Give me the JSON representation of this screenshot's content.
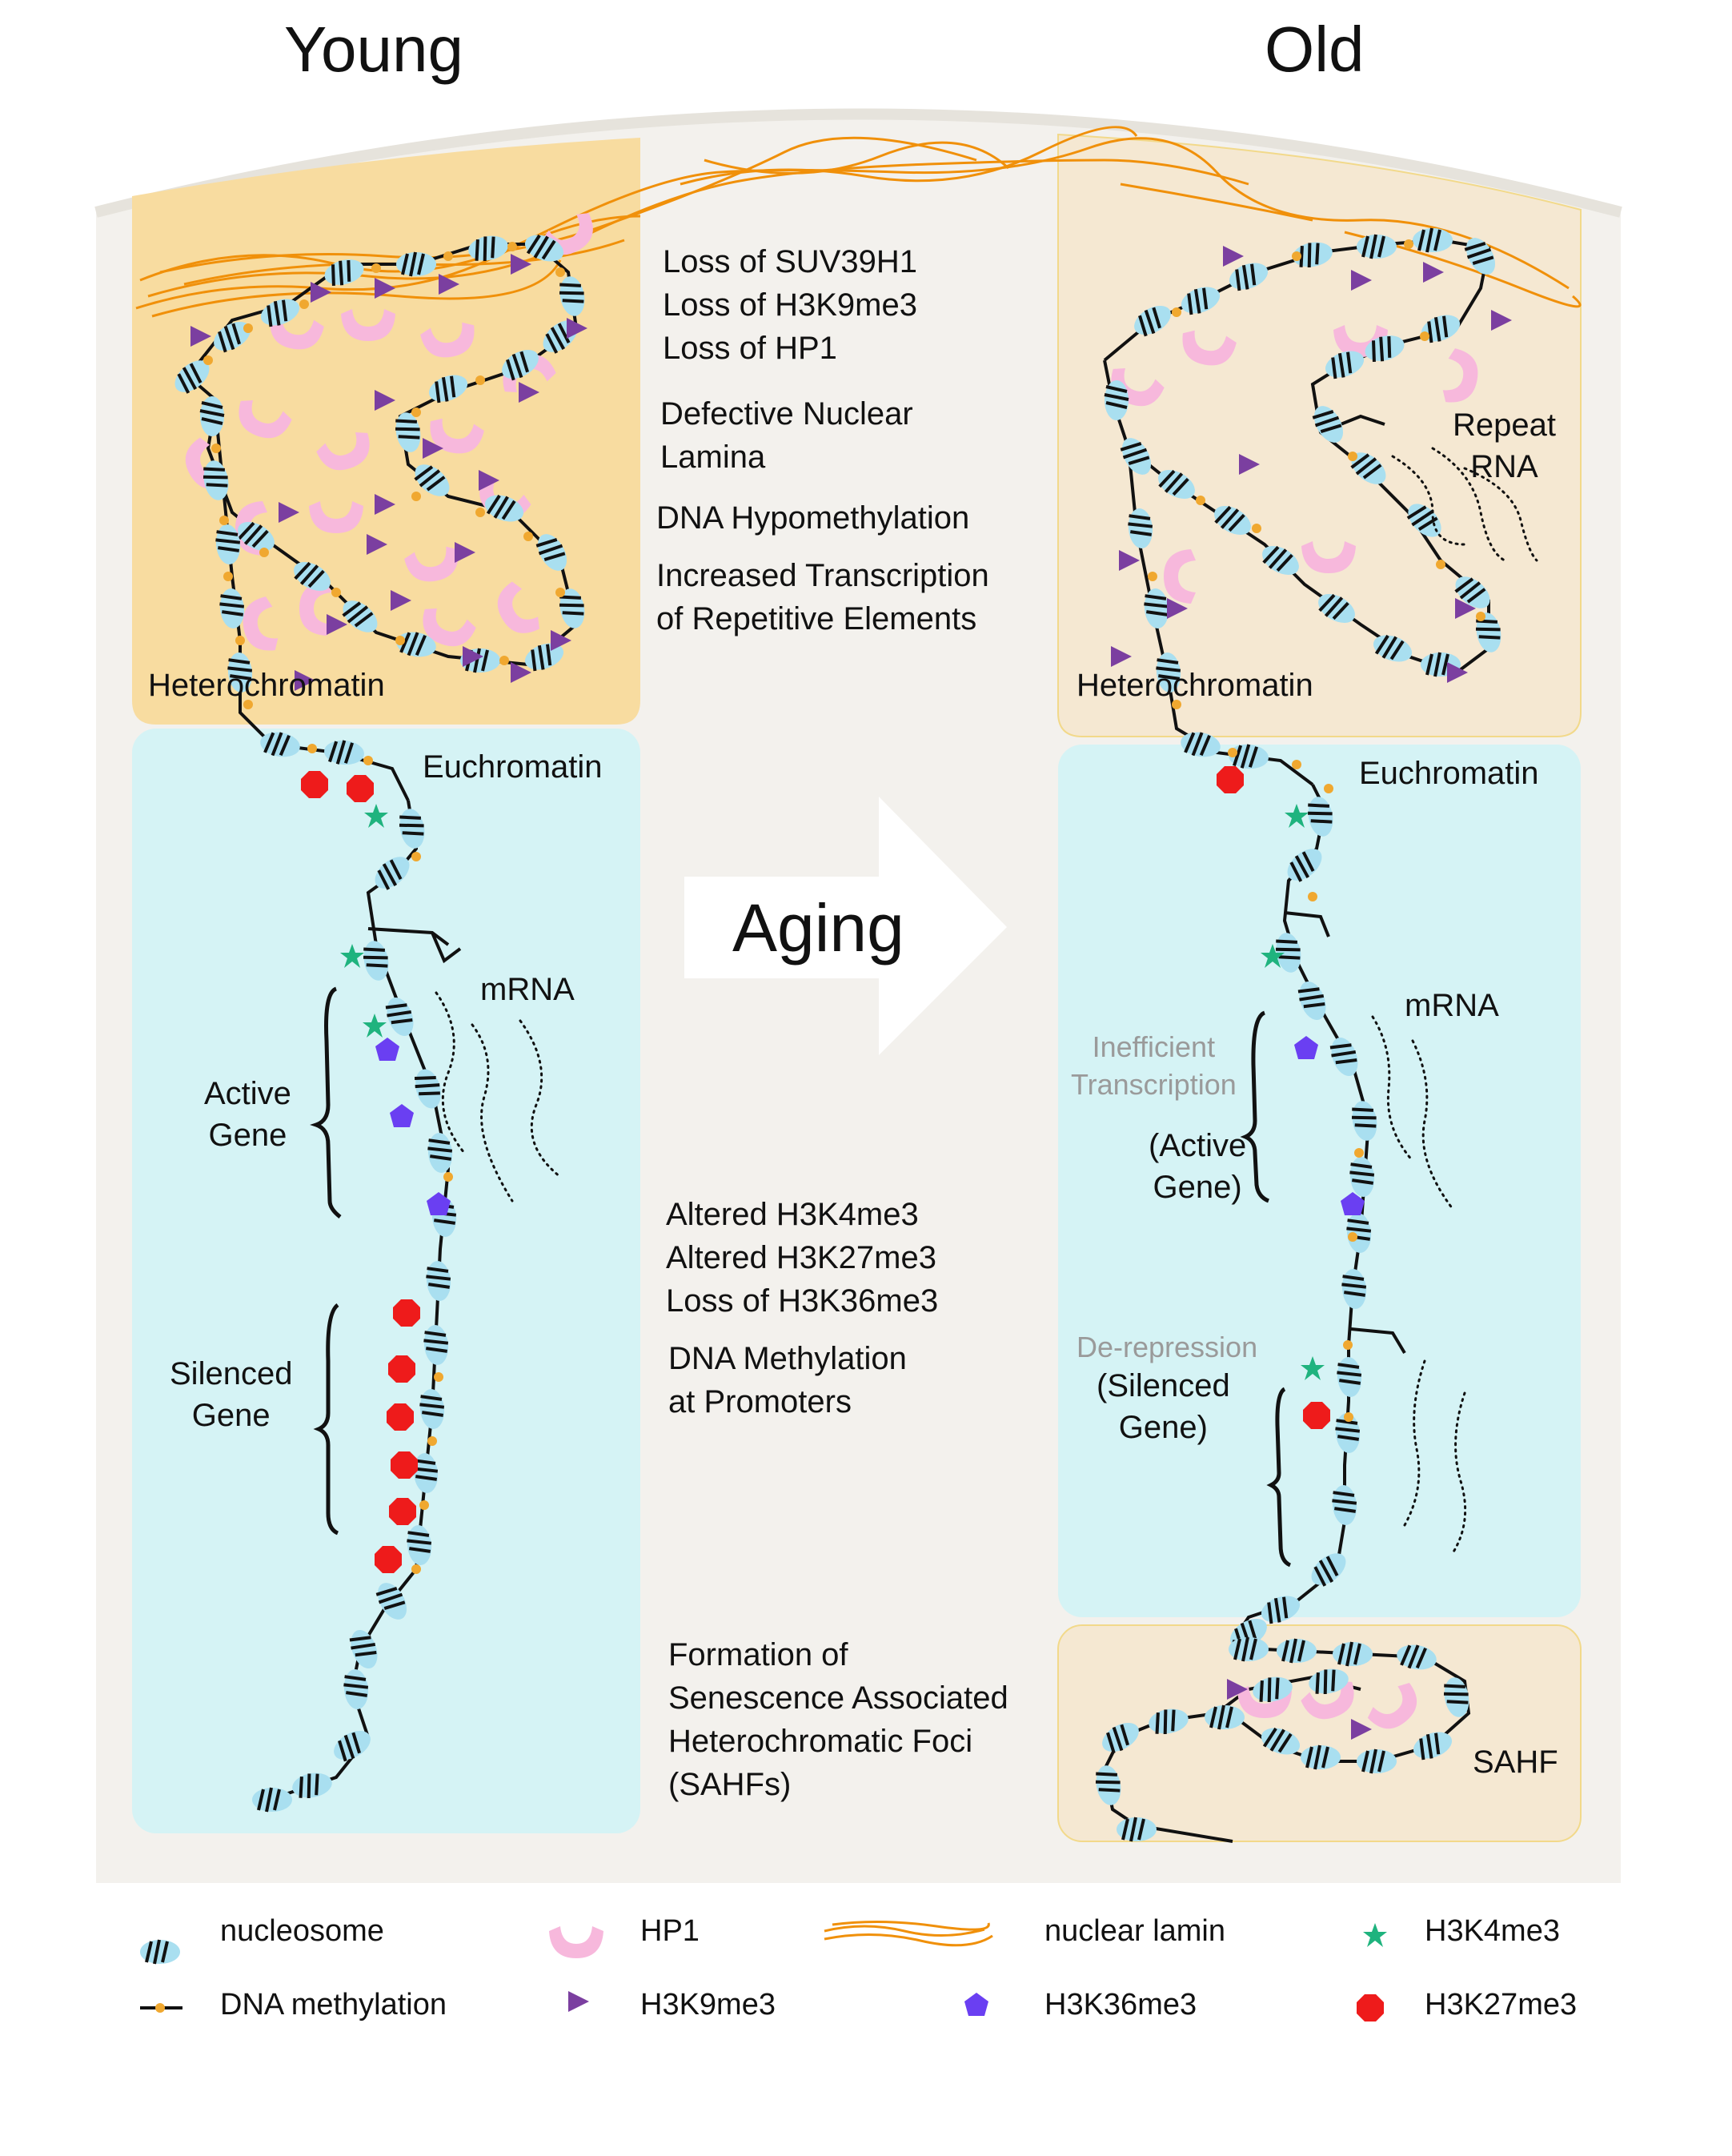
{
  "titles": {
    "young": "Young",
    "old": "Old"
  },
  "regions": {
    "heterochromatin_young": "Heterochromatin",
    "heterochromatin_old": "Heterochromatin",
    "euchromatin_young": "Euchromatin",
    "euchromatin_old": "Euchromatin",
    "sahf": "SAHF",
    "repeat_rna": "Repeat\nRNA"
  },
  "center_arrow_label": "Aging",
  "heterochromatin_changes": [
    "Loss of SUV39H1\nLoss of H3K9me3\nLoss of HP1",
    "Defective Nuclear\nLamina",
    "DNA Hypomethylation",
    "Increased Transcription\nof Repetitive Elements"
  ],
  "euchromatin_changes": [
    "Altered H3K4me3\nAltered H3K27me3\nLoss of H3K36me3",
    "DNA Methylation\nat Promoters"
  ],
  "sahf_change": "Formation of\nSenescence Associated\nHeterochromatic Foci\n(SAHFs)",
  "young_labels": {
    "mrna": "mRNA",
    "active_gene": "Active\nGene",
    "silenced_gene": "Silenced\nGene"
  },
  "old_labels": {
    "mrna": "mRNA",
    "inefficient": "Inefficient\nTranscription",
    "active_gene": "(Active\nGene)",
    "derepression": "De-repression",
    "silenced_gene": "(Silenced\nGene)"
  },
  "legend": [
    {
      "label": "nucleosome",
      "icon": "nucleosome-icon"
    },
    {
      "label": "HP1",
      "icon": "hp1-icon"
    },
    {
      "label": "nuclear lamin",
      "icon": "lamin-icon"
    },
    {
      "label": "H3K4me3",
      "icon": "star-icon"
    },
    {
      "label": "DNA methylation",
      "icon": "methylation-icon"
    },
    {
      "label": "H3K9me3",
      "icon": "triangle-icon"
    },
    {
      "label": "H3K36me3",
      "icon": "pentagon-icon"
    },
    {
      "label": "H3K27me3",
      "icon": "octagon-icon"
    }
  ],
  "colors": {
    "heterochromatin_young": "#f8dca0",
    "heterochromatin_old": "#f5e8d2",
    "euchromatin": "#d5f3f5",
    "nucleus": "#f3f1ed",
    "nucleosome": "#a9dff0",
    "hp1": "#f7b8dc",
    "lamin": "#f0900a",
    "h3k9me3": "#7b3fa0",
    "h3k4me3": "#1fb37e",
    "h3k36me3": "#6a3ff2",
    "h3k27me3": "#ee1b1b",
    "methylation": "#f0a830"
  }
}
